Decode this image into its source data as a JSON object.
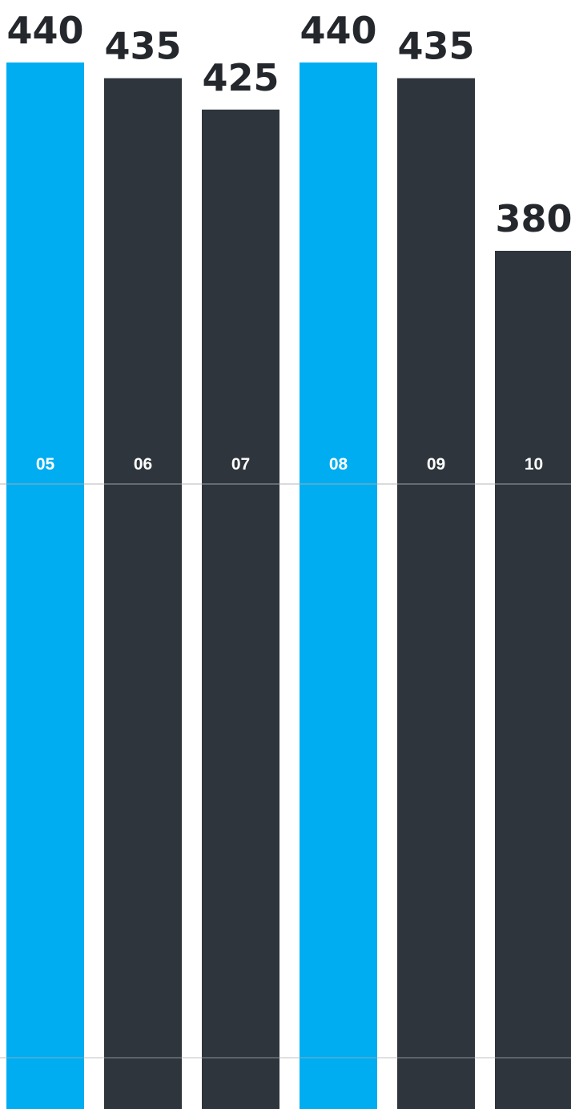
{
  "chart_data": {
    "type": "bar",
    "categories": [
      "05",
      "06",
      "07",
      "08",
      "09",
      "10"
    ],
    "values": [
      440,
      435,
      425,
      440,
      435,
      380
    ],
    "title": "",
    "xlabel": "",
    "ylabel": "",
    "grid": false,
    "colors": {
      "highlight": "#00adf1",
      "default": "#2f353c",
      "value_label": "#24272c",
      "category_label": "#ffffff",
      "line": "#a9adb2"
    },
    "bar_colors": [
      "highlight",
      "default",
      "default",
      "highlight",
      "default",
      "default"
    ]
  }
}
